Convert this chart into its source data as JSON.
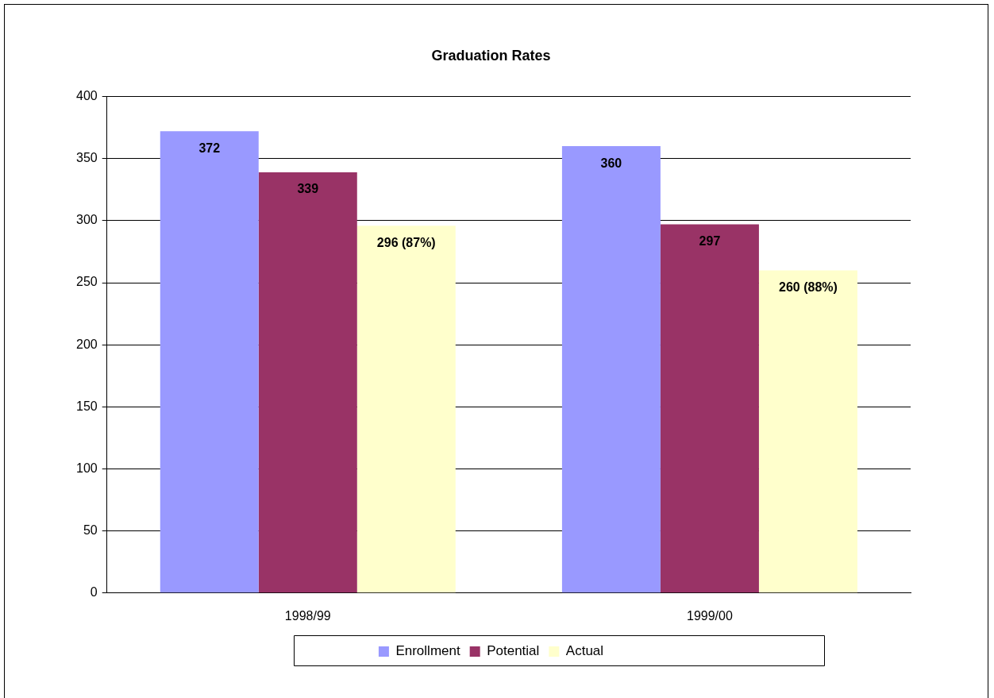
{
  "chart_data": {
    "type": "bar",
    "title": "Graduation Rates",
    "categories": [
      "1998/99",
      "1999/00"
    ],
    "series": [
      {
        "name": "Enrollment",
        "color": "#9999ff",
        "values": [
          372,
          360
        ],
        "value_labels": [
          "372",
          "360"
        ]
      },
      {
        "name": "Potential",
        "color": "#993366",
        "values": [
          339,
          297
        ],
        "value_labels": [
          "339",
          "297"
        ]
      },
      {
        "name": "Actual",
        "color": "#ffffcc",
        "values": [
          296,
          260
        ],
        "value_labels": [
          "296 (87%)",
          "260 (88%)"
        ]
      }
    ],
    "ylim": [
      0,
      400
    ],
    "yticks": [
      0,
      50,
      100,
      150,
      200,
      250,
      300,
      350,
      400
    ],
    "grid": "y",
    "legend": "bottom"
  }
}
